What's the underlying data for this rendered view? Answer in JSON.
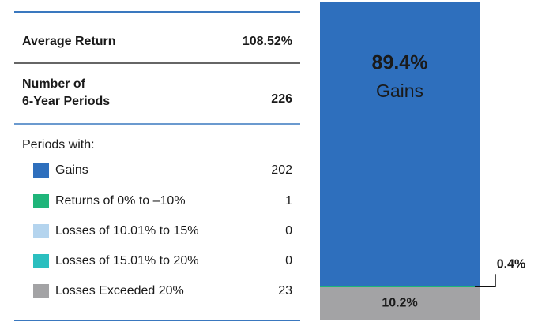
{
  "summary": {
    "rows": [
      {
        "label": [
          "Average Return"
        ],
        "value": "108.52%"
      },
      {
        "label": [
          "Number of",
          "6-Year Periods"
        ],
        "value": "226"
      }
    ],
    "periods_heading": "Periods with:"
  },
  "chart_data": {
    "type": "stacked-bar",
    "ylim": [
      0,
      100
    ],
    "series": [
      {
        "name": "Gains",
        "color": "#2e6fbd",
        "values": [
          89.4
        ],
        "value_labels": [
          "89.4%"
        ],
        "count": 202
      },
      {
        "name": "Returns of 0% to –10%",
        "color": "#1fb57a",
        "values": [
          0.4
        ],
        "value_labels": [
          "0.4%"
        ],
        "count": 1
      },
      {
        "name": "Losses of 10.01% to 15%",
        "color": "#b4d4ee",
        "values": [
          0
        ],
        "count": 0
      },
      {
        "name": "Losses of 15.01% to 20%",
        "color": "#2bbfbf",
        "values": [
          0
        ],
        "count": 0
      },
      {
        "name": "Losses Exceeded 20%",
        "color": "#a3a3a5",
        "values": [
          10.2
        ],
        "value_labels": [
          "10.2%"
        ],
        "count": 23
      }
    ]
  }
}
